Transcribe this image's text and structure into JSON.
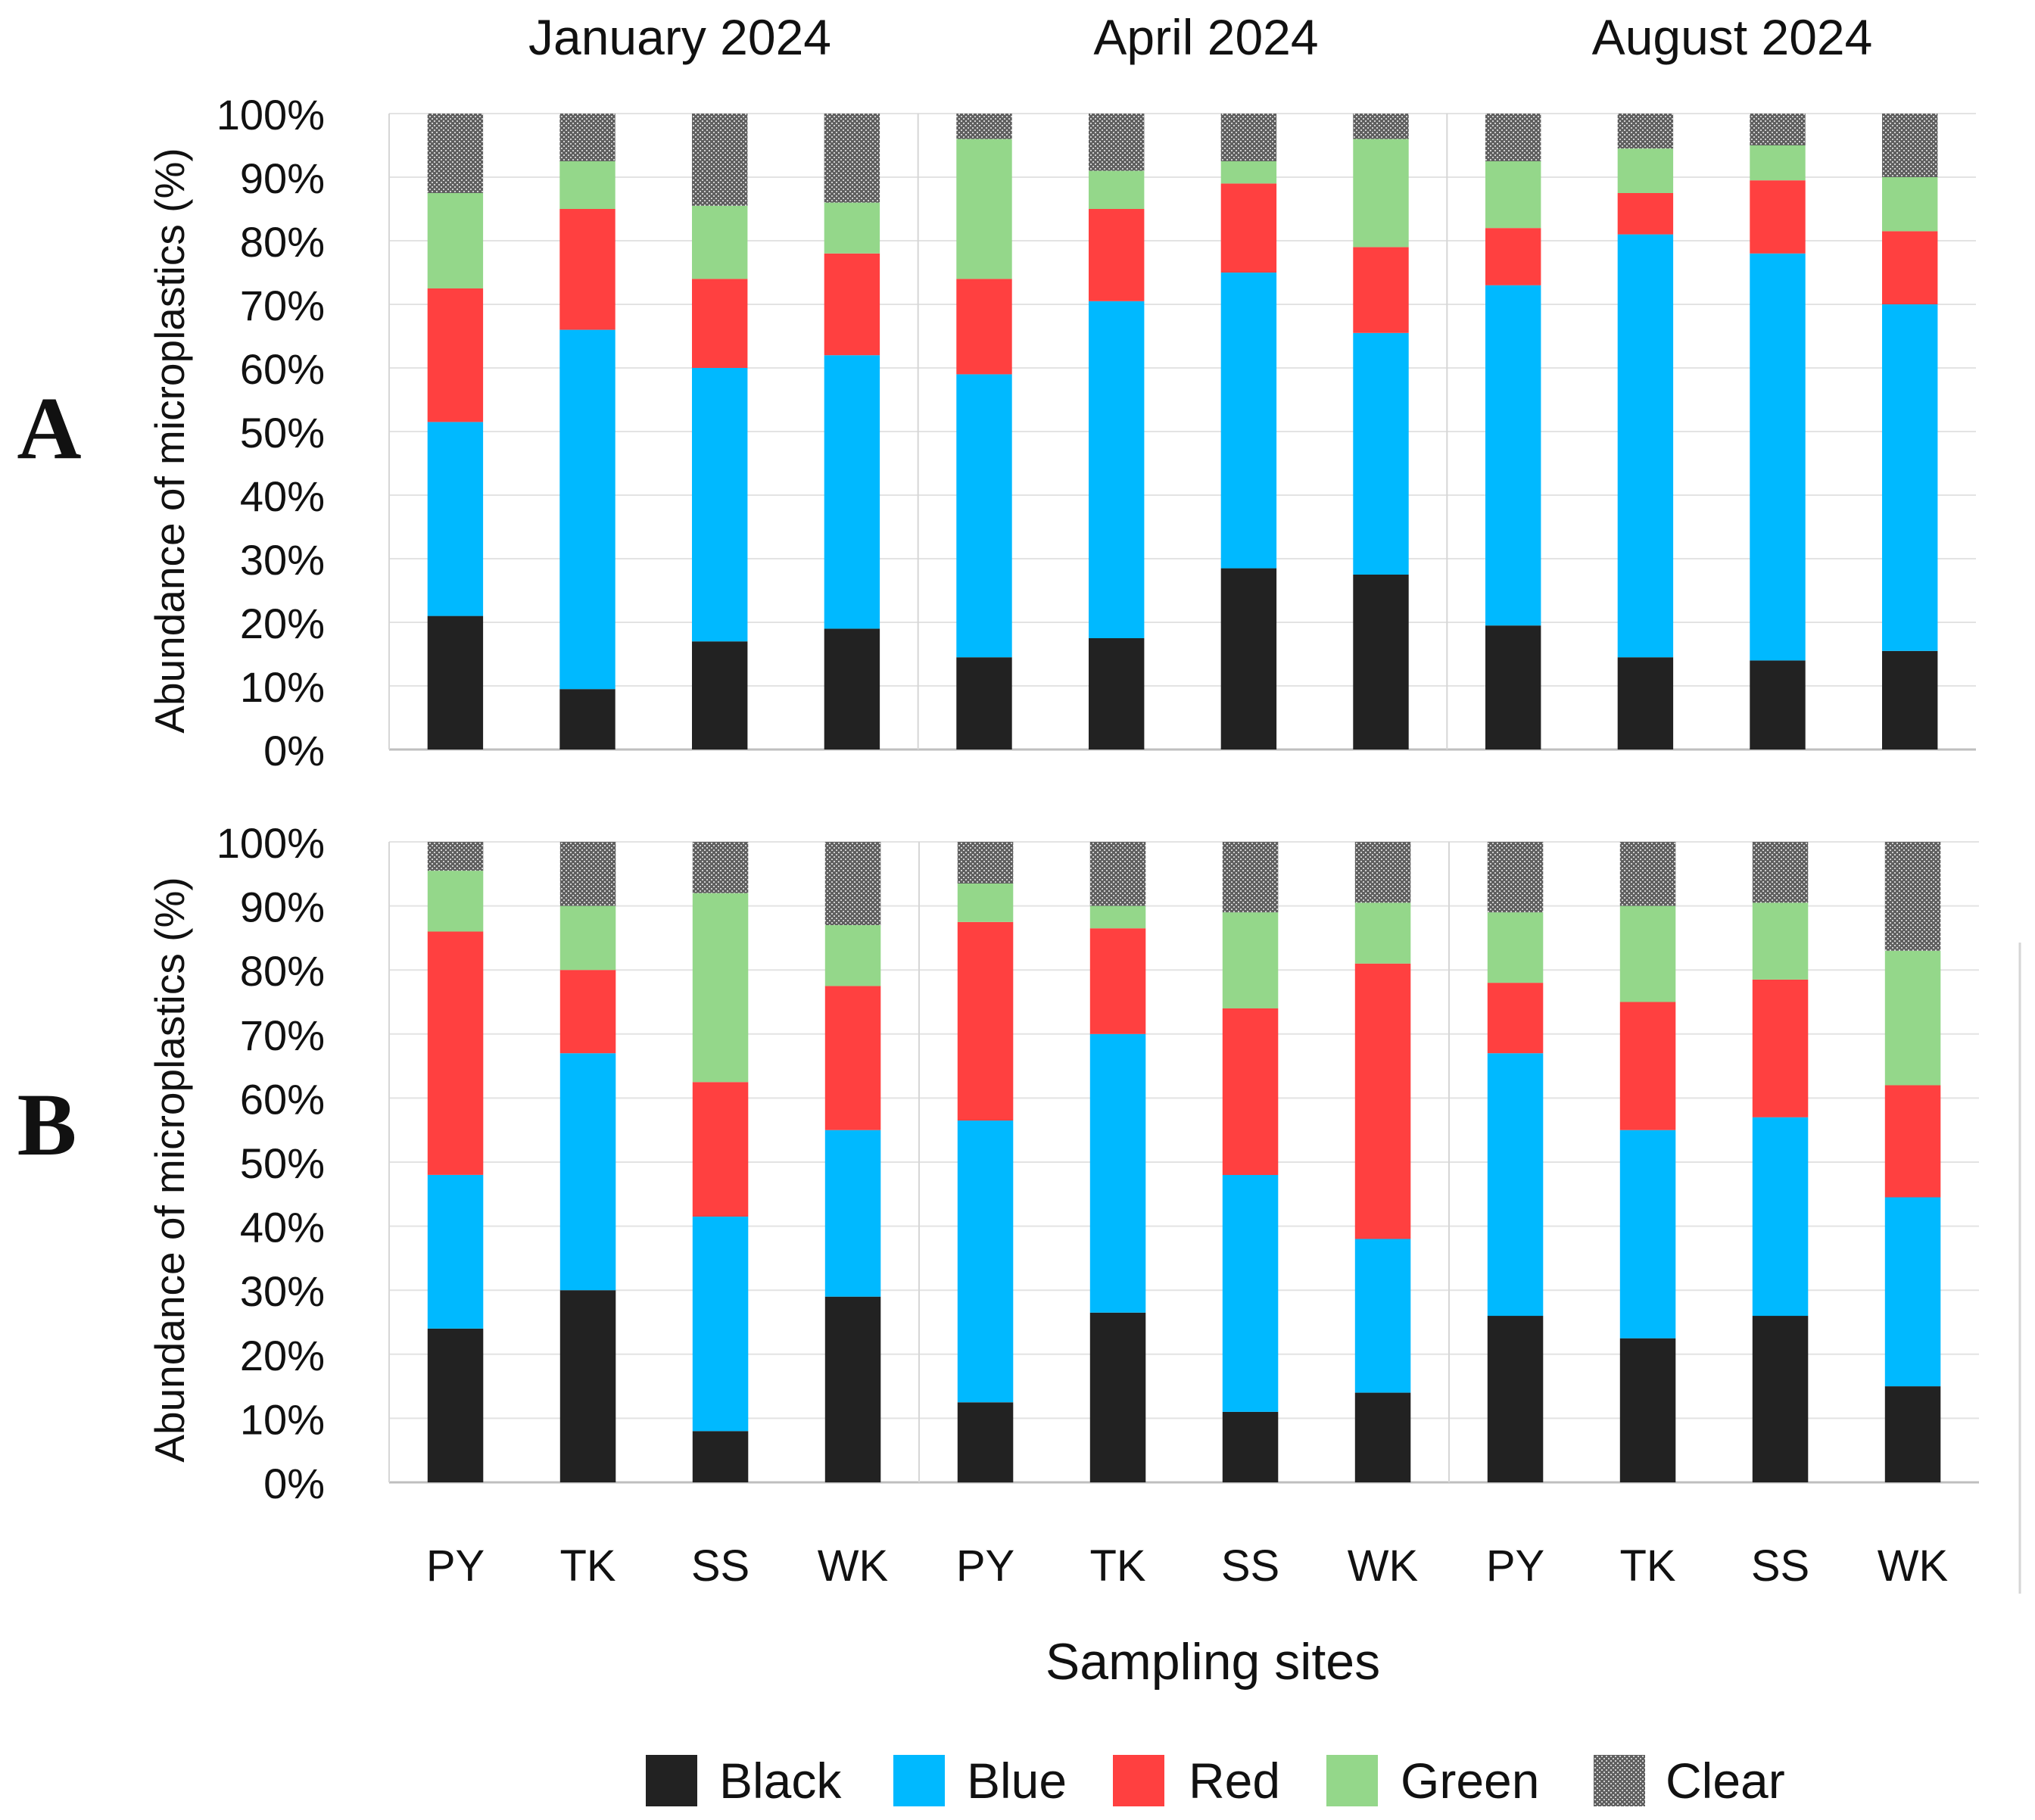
{
  "colors": {
    "black": "#222222",
    "blue": "#00b9ff",
    "red": "#ff4040",
    "green": "#94d78a",
    "clear_base": "#5f5f5f",
    "clear_dot": "#cfcfcf",
    "gridline": "#e3e3e3",
    "axis_line": "#bfbfbf",
    "divider": "#d6d6d6"
  },
  "chart_data": {
    "type": "bar",
    "stacked": true,
    "title": "",
    "periods": [
      "January 2024",
      "April 2024",
      "August 2024"
    ],
    "sites": [
      "PY",
      "TK",
      "SS",
      "WK"
    ],
    "categories": [
      "PY",
      "TK",
      "SS",
      "WK",
      "PY",
      "TK",
      "SS",
      "WK",
      "PY",
      "TK",
      "SS",
      "WK"
    ],
    "xlabel": "Sampling sites",
    "ylabel": "Abundance of microplastics (%)",
    "ylim": [
      0,
      100
    ],
    "yticks": [
      "0%",
      "10%",
      "20%",
      "30%",
      "40%",
      "50%",
      "60%",
      "70%",
      "80%",
      "90%",
      "100%"
    ],
    "grid": true,
    "legend_position": "bottom",
    "legend": [
      "Black",
      "Blue",
      "Red",
      "Green",
      "Clear"
    ],
    "panels": [
      {
        "label": "A",
        "series": [
          {
            "name": "Black",
            "values": [
              21,
              9.5,
              17,
              19,
              14.5,
              17.5,
              28.5,
              27.5,
              19.5,
              14.5,
              14,
              15.5
            ]
          },
          {
            "name": "Blue",
            "values": [
              30.5,
              56.5,
              43,
              43,
              44.5,
              53,
              46.5,
              38,
              53.5,
              66.5,
              64,
              54.5
            ]
          },
          {
            "name": "Red",
            "values": [
              21,
              19,
              14,
              16,
              15,
              14.5,
              14,
              13.5,
              9,
              6.5,
              11.5,
              11.5
            ]
          },
          {
            "name": "Green",
            "values": [
              15,
              7.5,
              11.5,
              8,
              22,
              6,
              3.5,
              17,
              10.5,
              7,
              5.5,
              8.5
            ]
          },
          {
            "name": "Clear",
            "values": [
              12.5,
              7.5,
              14.5,
              14,
              4,
              9,
              7.5,
              4,
              7.5,
              5.5,
              5,
              10
            ]
          }
        ]
      },
      {
        "label": "B",
        "series": [
          {
            "name": "Black",
            "values": [
              24,
              30,
              8,
              29,
              12.5,
              26.5,
              11,
              14,
              26,
              22.5,
              26,
              15
            ]
          },
          {
            "name": "Blue",
            "values": [
              24,
              37,
              33.5,
              26,
              44,
              43.5,
              37,
              24,
              41,
              32.5,
              31,
              29.5
            ]
          },
          {
            "name": "Red",
            "values": [
              38,
              13,
              21,
              22.5,
              31,
              16.5,
              26,
              43,
              11,
              20,
              21.5,
              17.5
            ]
          },
          {
            "name": "Green",
            "values": [
              9.5,
              10,
              29.5,
              9.5,
              6,
              3.5,
              15,
              9.5,
              11,
              15,
              12,
              21
            ]
          },
          {
            "name": "Clear",
            "values": [
              4.5,
              10,
              8,
              13,
              6.5,
              10.5,
              11,
              9.5,
              11,
              10,
              9.5,
              17
            ]
          }
        ]
      }
    ]
  }
}
